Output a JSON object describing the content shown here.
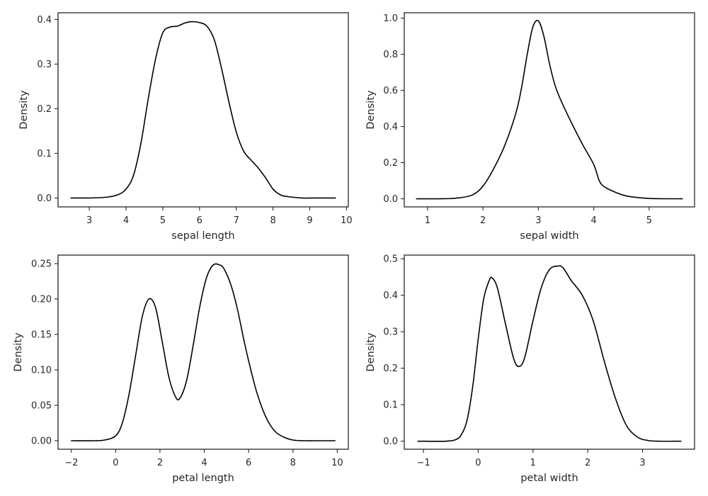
{
  "colors": {
    "curve": "#000000",
    "axes": "#262626",
    "background": "#ffffff"
  },
  "chart_data": [
    {
      "type": "line",
      "title": "",
      "xlabel": "sepal length",
      "ylabel": "Density",
      "xlim": [
        2.15,
        10.05
      ],
      "ylim": [
        -0.02,
        0.415
      ],
      "xticks": [
        3,
        4,
        5,
        6,
        7,
        8,
        9,
        10
      ],
      "xtick_labels": [
        "3",
        "4",
        "5",
        "6",
        "7",
        "8",
        "9",
        "10"
      ],
      "yticks": [
        0.0,
        0.1,
        0.2,
        0.3,
        0.4
      ],
      "ytick_labels": [
        "0.0",
        "0.1",
        "0.2",
        "0.3",
        "0.4"
      ],
      "series": [
        {
          "name": "sepal length",
          "x": [
            2.5,
            3.0,
            3.5,
            3.8,
            4.0,
            4.2,
            4.4,
            4.6,
            4.8,
            5.0,
            5.2,
            5.4,
            5.6,
            5.8,
            6.0,
            6.2,
            6.4,
            6.6,
            6.8,
            7.0,
            7.2,
            7.4,
            7.6,
            7.8,
            8.0,
            8.2,
            8.4,
            8.8,
            9.2,
            9.7
          ],
          "y": [
            0.0,
            0.0,
            0.002,
            0.008,
            0.02,
            0.05,
            0.12,
            0.22,
            0.31,
            0.37,
            0.383,
            0.385,
            0.392,
            0.395,
            0.393,
            0.385,
            0.355,
            0.29,
            0.215,
            0.148,
            0.105,
            0.085,
            0.067,
            0.045,
            0.02,
            0.007,
            0.003,
            0.0,
            0.0,
            0.0
          ]
        }
      ]
    },
    {
      "type": "line",
      "title": "",
      "xlabel": "sepal width",
      "ylabel": "Density",
      "xlim": [
        0.58,
        5.82
      ],
      "ylim": [
        -0.045,
        1.03
      ],
      "xticks": [
        1,
        2,
        3,
        4,
        5
      ],
      "xtick_labels": [
        "1",
        "2",
        "3",
        "4",
        "5"
      ],
      "yticks": [
        0.0,
        0.2,
        0.4,
        0.6,
        0.8,
        1.0
      ],
      "ytick_labels": [
        "0.0",
        "0.2",
        "0.4",
        "0.6",
        "0.8",
        "1.0"
      ],
      "series": [
        {
          "name": "sepal width",
          "x": [
            0.8,
            1.2,
            1.5,
            1.8,
            2.0,
            2.2,
            2.4,
            2.6,
            2.7,
            2.8,
            2.9,
            3.0,
            3.1,
            3.2,
            3.3,
            3.4,
            3.6,
            3.8,
            4.0,
            4.1,
            4.2,
            4.4,
            4.6,
            5.0,
            5.6
          ],
          "y": [
            0.0,
            0.0,
            0.003,
            0.02,
            0.07,
            0.17,
            0.3,
            0.48,
            0.62,
            0.8,
            0.95,
            0.985,
            0.9,
            0.75,
            0.63,
            0.55,
            0.42,
            0.3,
            0.19,
            0.1,
            0.065,
            0.035,
            0.015,
            0.002,
            0.0
          ]
        }
      ]
    },
    {
      "type": "line",
      "title": "",
      "xlabel": "petal length",
      "ylabel": "Density",
      "xlim": [
        -2.6,
        10.5
      ],
      "ylim": [
        -0.012,
        0.262
      ],
      "xticks": [
        -2,
        0,
        2,
        4,
        6,
        8,
        10
      ],
      "xtick_labels": [
        "−2",
        "0",
        "2",
        "4",
        "6",
        "8",
        "10"
      ],
      "yticks": [
        0.0,
        0.05,
        0.1,
        0.15,
        0.2,
        0.25
      ],
      "ytick_labels": [
        "0.00",
        "0.05",
        "0.10",
        "0.15",
        "0.20",
        "0.25"
      ],
      "series": [
        {
          "name": "petal length",
          "x": [
            -2.0,
            -1.0,
            -0.5,
            0.0,
            0.3,
            0.6,
            0.9,
            1.2,
            1.5,
            1.8,
            2.1,
            2.4,
            2.7,
            2.9,
            3.2,
            3.5,
            3.8,
            4.1,
            4.4,
            4.7,
            4.9,
            5.2,
            5.5,
            5.8,
            6.1,
            6.4,
            6.8,
            7.2,
            7.6,
            8.0,
            8.5,
            9.0,
            9.9
          ],
          "y": [
            0.0,
            0.0,
            0.001,
            0.007,
            0.025,
            0.065,
            0.12,
            0.175,
            0.2,
            0.188,
            0.14,
            0.09,
            0.062,
            0.06,
            0.085,
            0.135,
            0.19,
            0.23,
            0.248,
            0.248,
            0.242,
            0.22,
            0.185,
            0.14,
            0.1,
            0.065,
            0.032,
            0.013,
            0.005,
            0.001,
            0.0,
            0.0,
            0.0
          ]
        }
      ]
    },
    {
      "type": "line",
      "title": "",
      "xlabel": "petal width",
      "ylabel": "Density",
      "xlim": [
        -1.35,
        3.95
      ],
      "ylim": [
        -0.022,
        0.51
      ],
      "xticks": [
        -1,
        0,
        1,
        2,
        3
      ],
      "xtick_labels": [
        "−1",
        "0",
        "1",
        "2",
        "3"
      ],
      "yticks": [
        0.0,
        0.1,
        0.2,
        0.3,
        0.4,
        0.5
      ],
      "ytick_labels": [
        "0.0",
        "0.1",
        "0.2",
        "0.3",
        "0.4",
        "0.5"
      ],
      "series": [
        {
          "name": "petal width",
          "x": [
            -1.1,
            -0.6,
            -0.4,
            -0.3,
            -0.2,
            -0.1,
            0.0,
            0.1,
            0.2,
            0.25,
            0.35,
            0.5,
            0.65,
            0.75,
            0.85,
            1.0,
            1.15,
            1.3,
            1.45,
            1.55,
            1.7,
            1.9,
            2.1,
            2.3,
            2.5,
            2.7,
            2.9,
            3.1,
            3.3,
            3.7
          ],
          "y": [
            0.0,
            0.0,
            0.005,
            0.02,
            0.06,
            0.15,
            0.28,
            0.39,
            0.44,
            0.448,
            0.42,
            0.32,
            0.225,
            0.205,
            0.23,
            0.33,
            0.42,
            0.47,
            0.48,
            0.475,
            0.44,
            0.4,
            0.33,
            0.22,
            0.12,
            0.045,
            0.012,
            0.002,
            0.0,
            0.0
          ]
        }
      ]
    }
  ]
}
